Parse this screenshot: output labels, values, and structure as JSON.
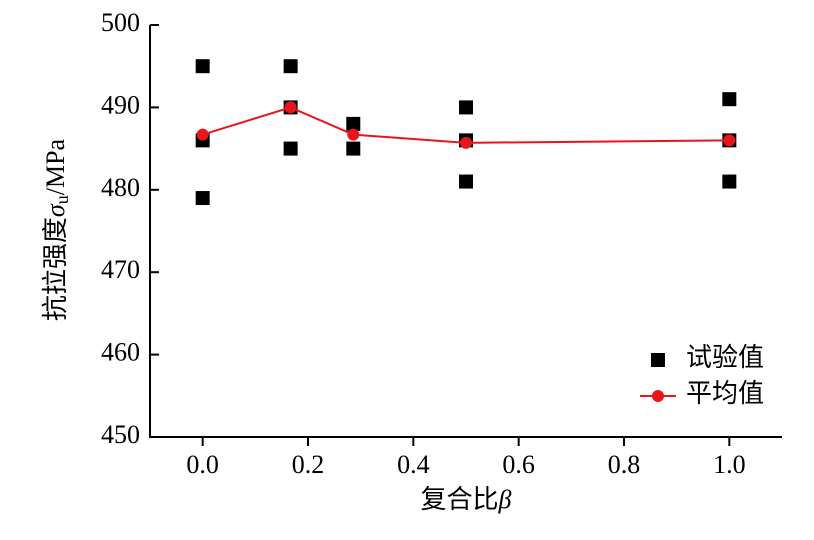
{
  "chart_data": {
    "type": "scatter",
    "xlabel": [
      "复合比",
      "β"
    ],
    "ylabel": [
      "抗拉强度",
      "σ",
      "u",
      "/MPa"
    ],
    "xlim": [
      -0.1,
      1.1
    ],
    "xticks": [
      {
        "value": 0,
        "label": "0.0"
      },
      0.2,
      0.4,
      0.6,
      0.8,
      {
        "value": 1,
        "label": "1.0"
      }
    ],
    "ylim": [
      450,
      500
    ],
    "yticks": [
      450,
      460,
      470,
      480,
      490,
      500
    ],
    "legend": "lower right",
    "series": [
      {
        "name": "试验值",
        "type": "scatter",
        "color": "#000000",
        "x": [
          0,
          0,
          0,
          0.167,
          0.167,
          0.167,
          0.286,
          0.286,
          0.5,
          0.5,
          0.5,
          1,
          1,
          1
        ],
        "values": [
          495,
          486,
          479,
          495,
          490,
          485,
          488,
          485,
          490,
          486,
          481,
          491,
          486,
          481
        ]
      },
      {
        "name": "平均值",
        "type": "line",
        "color": "#e8161b",
        "x": [
          0,
          0.167,
          0.286,
          0.5,
          1
        ],
        "values": [
          486.7,
          490,
          486.7,
          485.7,
          486
        ]
      }
    ]
  }
}
